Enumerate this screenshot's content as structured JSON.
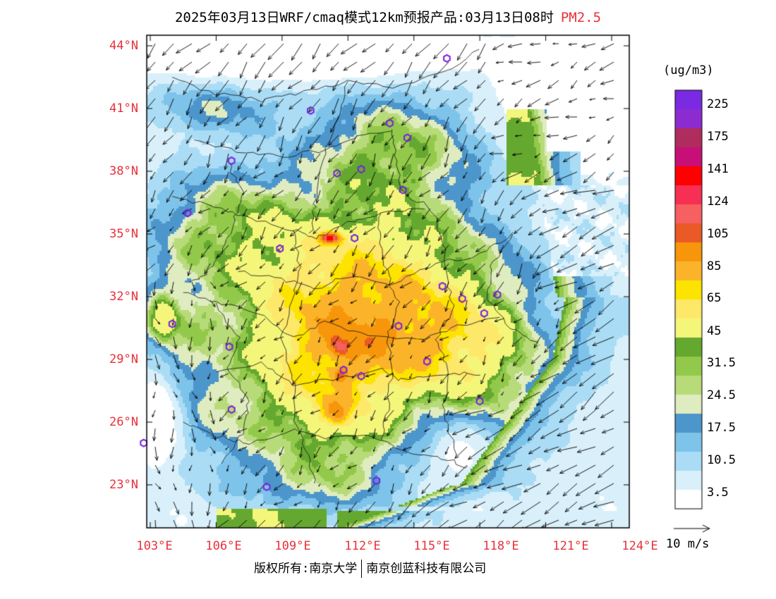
{
  "title": {
    "text": "2025年03月13日WRF/cmaq模式12km预报产品:03月13日08时",
    "variable": "PM2.5"
  },
  "axes": {
    "lat_labels": [
      "44°N",
      "41°N",
      "38°N",
      "35°N",
      "32°N",
      "29°N",
      "26°N",
      "23°N"
    ],
    "lon_labels": [
      "103°E",
      "106°E",
      "109°E",
      "112°E",
      "115°E",
      "118°E",
      "121°E",
      "124°E"
    ]
  },
  "colorbar": {
    "unit": "(ug/m3)",
    "colors": [
      "#ffffff",
      "#d9f0fb",
      "#aadcf5",
      "#7ec3ea",
      "#4d96cc",
      "#dfecc0",
      "#b8db7a",
      "#92c94a",
      "#65a830",
      "#f4f67a",
      "#fde86a",
      "#fde300",
      "#fbb42a",
      "#f7960a",
      "#e95a27",
      "#f76060",
      "#f72f55",
      "#ff0000",
      "#c80f78",
      "#b02c5c",
      "#8c2cd0",
      "#7a2ae0"
    ],
    "labels": [
      {
        "text": "3.5",
        "index": 1
      },
      {
        "text": "10.5",
        "index": 3
      },
      {
        "text": "17.5",
        "index": 5
      },
      {
        "text": "24.5",
        "index": 7
      },
      {
        "text": "31.5",
        "index": 9
      },
      {
        "text": "45",
        "index": 10
      },
      {
        "text": "65",
        "index": 12
      },
      {
        "text": "85",
        "index": 13
      },
      {
        "text": "105",
        "index": 14
      },
      {
        "text": "124",
        "index": 15
      },
      {
        "text": "141",
        "index": 16
      },
      {
        "text": "175",
        "index": 18
      },
      {
        "text": "225",
        "index": 20
      }
    ]
  },
  "wind_reference": "10 m/s",
  "footer": {
    "left": "版权所有:南京大学",
    "right": "南京创蓝科技有限公司"
  },
  "stations": [
    [
      104.7,
      36.0
    ],
    [
      106.7,
      38.5
    ],
    [
      110.3,
      40.9
    ],
    [
      111.5,
      37.9
    ],
    [
      112.6,
      38.1
    ],
    [
      113.9,
      40.3
    ],
    [
      114.7,
      39.6
    ],
    [
      114.5,
      37.1
    ],
    [
      116.5,
      43.4
    ],
    [
      108.9,
      34.3
    ],
    [
      112.3,
      34.8
    ],
    [
      117.2,
      31.9
    ],
    [
      116.3,
      32.5
    ],
    [
      118.8,
      32.1
    ],
    [
      118.2,
      31.2
    ],
    [
      114.3,
      30.6
    ],
    [
      112.6,
      28.2
    ],
    [
      115.6,
      28.9
    ],
    [
      104.0,
      30.7
    ],
    [
      106.6,
      29.6
    ],
    [
      106.7,
      26.6
    ],
    [
      118.0,
      27.0
    ],
    [
      108.3,
      22.9
    ],
    [
      113.3,
      23.2
    ],
    [
      102.7,
      25.0
    ],
    [
      111.8,
      28.5
    ]
  ]
}
